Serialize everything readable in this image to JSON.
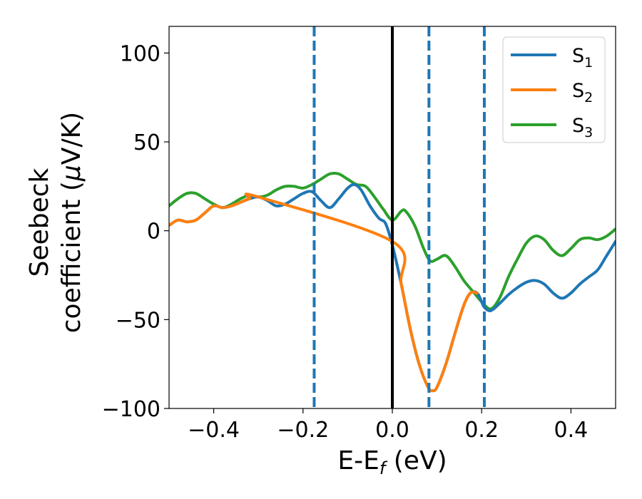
{
  "chart_data": {
    "type": "line",
    "xlabel": {
      "main": "E-E",
      "sub": "f",
      "unit": " (eV)"
    },
    "ylabel": {
      "line1": "Seebeck",
      "line2_prefix": "coefficient  (",
      "mu": "μ",
      "line2_suffix": "V/K)"
    },
    "xlim": [
      -0.5,
      0.5
    ],
    "ylim": [
      -100,
      115
    ],
    "xticks": [
      -0.4,
      -0.2,
      0.0,
      0.2,
      0.4
    ],
    "xtick_labels": [
      "−0.4",
      "−0.2",
      "0.0",
      "0.2",
      "0.4"
    ],
    "yticks": [
      -100,
      -50,
      0,
      50,
      100
    ],
    "ytick_labels": [
      "−100",
      "−50",
      "0",
      "50",
      "100"
    ],
    "grid": false,
    "legend_position": "top-right",
    "vlines": [
      {
        "x": 0.0,
        "style": "solid",
        "color": "#000000"
      },
      {
        "x": -0.175,
        "style": "dashed",
        "color": "#1f77b4"
      },
      {
        "x": 0.082,
        "style": "dashed",
        "color": "#1f77b4"
      },
      {
        "x": 0.206,
        "style": "dashed",
        "color": "#1f77b4"
      }
    ],
    "series": [
      {
        "name": "S",
        "sub": "1",
        "color": "#1f77b4",
        "points": [
          [
            -0.5,
            3
          ],
          [
            -0.48,
            6
          ],
          [
            -0.46,
            5
          ],
          [
            -0.44,
            6
          ],
          [
            -0.42,
            10
          ],
          [
            -0.4,
            14
          ],
          [
            -0.38,
            13
          ],
          [
            -0.36,
            14
          ],
          [
            -0.34,
            16
          ],
          [
            -0.32,
            18
          ],
          [
            -0.3,
            19
          ],
          [
            -0.28,
            17
          ],
          [
            -0.26,
            14
          ],
          [
            -0.24,
            15
          ],
          [
            -0.22,
            18
          ],
          [
            -0.2,
            21
          ],
          [
            -0.18,
            22
          ],
          [
            -0.16,
            17
          ],
          [
            -0.14,
            13
          ],
          [
            -0.12,
            18
          ],
          [
            -0.1,
            24
          ],
          [
            -0.085,
            26
          ],
          [
            -0.07,
            23
          ],
          [
            -0.05,
            14
          ],
          [
            -0.03,
            7
          ],
          [
            -0.015,
            4
          ],
          [
            0.0,
            -8
          ],
          [
            0.02,
            -30
          ],
          [
            0.04,
            -55
          ],
          [
            0.06,
            -75
          ],
          [
            0.08,
            -88
          ],
          [
            0.09,
            -90
          ],
          [
            0.1,
            -88
          ],
          [
            0.12,
            -75
          ],
          [
            0.14,
            -58
          ],
          [
            0.16,
            -42
          ],
          [
            0.175,
            -35
          ],
          [
            0.19,
            -35
          ],
          [
            0.2,
            -40
          ],
          [
            0.206,
            -43
          ],
          [
            0.22,
            -45
          ],
          [
            0.24,
            -41
          ],
          [
            0.26,
            -36
          ],
          [
            0.28,
            -32
          ],
          [
            0.3,
            -29
          ],
          [
            0.32,
            -28
          ],
          [
            0.34,
            -30
          ],
          [
            0.36,
            -35
          ],
          [
            0.38,
            -38
          ],
          [
            0.4,
            -35
          ],
          [
            0.42,
            -30
          ],
          [
            0.44,
            -26
          ],
          [
            0.46,
            -22
          ],
          [
            0.48,
            -14
          ],
          [
            0.5,
            -6
          ]
        ]
      },
      {
        "name": "S",
        "sub": "2",
        "color": "#ff7f0e",
        "points": [
          [
            -0.5,
            3
          ],
          [
            -0.48,
            6
          ],
          [
            -0.46,
            5
          ],
          [
            -0.44,
            6
          ],
          [
            -0.42,
            10
          ],
          [
            -0.4,
            14
          ],
          [
            -0.38,
            13
          ],
          [
            -0.36,
            14
          ],
          [
            -0.34,
            16
          ],
          [
            -0.32,
            18
          ],
          [
            -0.3,
            19
          ],
          [
            0.0,
            -6
          ],
          [
            0.02,
            -30
          ],
          [
            0.04,
            -55
          ],
          [
            0.06,
            -75
          ],
          [
            0.08,
            -88
          ],
          [
            0.09,
            -90
          ],
          [
            0.1,
            -88
          ],
          [
            0.12,
            -75
          ],
          [
            0.14,
            -58
          ],
          [
            0.16,
            -42
          ],
          [
            0.175,
            -35
          ],
          [
            0.19,
            -35
          ]
        ]
      },
      {
        "name": "S",
        "sub": "3",
        "color": "#2ca02c",
        "points": [
          [
            -0.5,
            14
          ],
          [
            -0.48,
            18
          ],
          [
            -0.46,
            21
          ],
          [
            -0.44,
            21
          ],
          [
            -0.42,
            18
          ],
          [
            -0.4,
            15
          ],
          [
            -0.38,
            13
          ],
          [
            -0.36,
            15
          ],
          [
            -0.34,
            18
          ],
          [
            -0.32,
            20
          ],
          [
            -0.3,
            19
          ],
          [
            -0.28,
            20
          ],
          [
            -0.26,
            23
          ],
          [
            -0.24,
            25
          ],
          [
            -0.22,
            25
          ],
          [
            -0.2,
            24
          ],
          [
            -0.18,
            26
          ],
          [
            -0.16,
            29
          ],
          [
            -0.14,
            32
          ],
          [
            -0.12,
            32
          ],
          [
            -0.1,
            29
          ],
          [
            -0.08,
            26
          ],
          [
            -0.06,
            25
          ],
          [
            -0.04,
            19
          ],
          [
            -0.02,
            12
          ],
          [
            0.0,
            6
          ],
          [
            0.02,
            11
          ],
          [
            0.03,
            11
          ],
          [
            0.05,
            3
          ],
          [
            0.07,
            -10
          ],
          [
            0.085,
            -17
          ],
          [
            0.1,
            -16
          ],
          [
            0.12,
            -14
          ],
          [
            0.14,
            -20
          ],
          [
            0.16,
            -28
          ],
          [
            0.18,
            -34
          ],
          [
            0.2,
            -40
          ],
          [
            0.22,
            -44
          ],
          [
            0.24,
            -38
          ],
          [
            0.26,
            -26
          ],
          [
            0.28,
            -16
          ],
          [
            0.3,
            -7
          ],
          [
            0.32,
            -3
          ],
          [
            0.34,
            -5
          ],
          [
            0.36,
            -11
          ],
          [
            0.38,
            -14
          ],
          [
            0.4,
            -10
          ],
          [
            0.42,
            -5
          ],
          [
            0.44,
            -4
          ],
          [
            0.46,
            -5
          ],
          [
            0.48,
            -3
          ],
          [
            0.5,
            1
          ]
        ]
      }
    ]
  }
}
